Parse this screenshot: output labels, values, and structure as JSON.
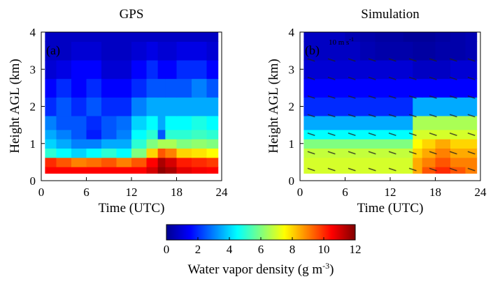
{
  "figure": {
    "colorbar": {
      "label": "Water vapor density (g m",
      "label_sup": "-3",
      "label_close": ")",
      "min": 0,
      "max": 12,
      "ticks": [
        "0",
        "2",
        "4",
        "6",
        "8",
        "10",
        "12"
      ],
      "colormap": "jet",
      "orientation": "horizontal"
    }
  },
  "chart_data": [
    {
      "type": "heatmap",
      "title": "GPS",
      "panel_label": "(a)",
      "xlabel": "Time (UTC)",
      "ylabel": "Height AGL (km)",
      "xlim": [
        0,
        24
      ],
      "ylim": [
        0,
        4
      ],
      "xticks": [
        "0",
        "6",
        "12",
        "18",
        "24"
      ],
      "yticks": [
        "0",
        "1",
        "2",
        "3",
        "4"
      ],
      "x": [
        1,
        3,
        5,
        7,
        9,
        11,
        13,
        15,
        16,
        17,
        19,
        21,
        23
      ],
      "y": [
        0.25,
        0.5,
        0.75,
        1.0,
        1.25,
        1.5,
        2.0,
        2.5,
        3.0,
        3.5,
        4.0
      ],
      "z": [
        [
          10.5,
          10.5,
          10.5,
          10.5,
          10.5,
          10.5,
          10.5,
          11.0,
          11.8,
          11.5,
          10.8,
          10.6,
          10.5
        ],
        [
          10.0,
          9.5,
          9.0,
          9.2,
          9.5,
          9.0,
          9.5,
          10.5,
          11.5,
          11.0,
          10.2,
          10.0,
          9.8
        ],
        [
          5.0,
          4.5,
          4.0,
          4.5,
          5.0,
          4.5,
          6.0,
          8.0,
          9.5,
          9.0,
          8.0,
          7.8,
          7.5
        ],
        [
          4.0,
          3.5,
          3.0,
          3.0,
          3.5,
          3.5,
          5.0,
          6.0,
          6.5,
          6.5,
          6.0,
          6.2,
          6.0
        ],
        [
          3.5,
          3.0,
          2.5,
          1.8,
          2.5,
          3.0,
          4.5,
          5.0,
          2.5,
          5.0,
          5.0,
          5.2,
          5.0
        ],
        [
          3.0,
          2.5,
          2.5,
          2.0,
          2.5,
          2.8,
          4.0,
          4.5,
          3.5,
          4.5,
          4.5,
          4.8,
          4.5
        ],
        [
          2.0,
          2.5,
          2.0,
          2.5,
          2.0,
          2.0,
          3.0,
          3.5,
          3.5,
          3.5,
          3.5,
          3.5,
          3.5
        ],
        [
          1.5,
          2.0,
          1.5,
          2.0,
          1.5,
          1.5,
          2.0,
          2.5,
          2.5,
          2.5,
          2.5,
          3.0,
          2.5
        ],
        [
          1.0,
          1.2,
          1.5,
          1.5,
          1.0,
          1.0,
          1.5,
          2.0,
          1.5,
          1.5,
          2.0,
          2.0,
          1.5
        ],
        [
          0.8,
          0.8,
          1.0,
          1.0,
          0.8,
          0.8,
          1.0,
          1.2,
          1.0,
          1.0,
          1.2,
          1.2,
          1.0
        ],
        [
          0.8,
          0.8,
          0.8,
          0.8,
          0.8,
          0.8,
          0.8,
          0.8,
          0.8,
          0.8,
          0.8,
          0.8,
          0.8
        ]
      ],
      "grid": false
    },
    {
      "type": "heatmap",
      "title": "Simulation",
      "panel_label": "(b)",
      "xlabel": "Time (UTC)",
      "ylabel": "Height AGL (km)",
      "xlim": [
        0,
        24
      ],
      "ylim": [
        0,
        4
      ],
      "xticks": [
        "0",
        "6",
        "12",
        "18",
        "24"
      ],
      "yticks": [
        "0",
        "1",
        "2",
        "3",
        "4"
      ],
      "annotation": "10 m s",
      "annotation_sup": "-1",
      "x": [
        1,
        3,
        5,
        7,
        9,
        11,
        13,
        14.5,
        15.5,
        17,
        19,
        21,
        23
      ],
      "y": [
        0.25,
        0.5,
        0.75,
        1.0,
        1.25,
        1.5,
        2.0,
        2.5,
        3.0,
        3.5,
        4.0
      ],
      "z": [
        [
          7.0,
          7.0,
          7.0,
          7.0,
          7.0,
          7.0,
          7.0,
          7.0,
          8.5,
          9.5,
          10.0,
          9.5,
          9.0
        ],
        [
          7.0,
          7.0,
          7.0,
          7.0,
          7.0,
          7.0,
          7.0,
          7.0,
          8.5,
          9.0,
          9.5,
          9.0,
          9.0
        ],
        [
          6.8,
          6.8,
          6.8,
          6.8,
          6.8,
          6.8,
          6.8,
          6.8,
          8.0,
          8.5,
          9.0,
          8.5,
          8.5
        ],
        [
          6.0,
          6.0,
          6.0,
          6.0,
          6.0,
          6.0,
          6.0,
          6.0,
          7.5,
          8.0,
          8.5,
          8.0,
          8.0
        ],
        [
          4.5,
          4.5,
          4.5,
          4.5,
          4.5,
          4.5,
          4.5,
          4.5,
          7.0,
          7.0,
          7.0,
          7.0,
          7.0
        ],
        [
          3.5,
          3.5,
          3.5,
          3.5,
          3.5,
          3.5,
          3.5,
          3.5,
          6.5,
          6.5,
          6.5,
          6.5,
          6.5
        ],
        [
          2.0,
          2.0,
          2.0,
          2.0,
          2.0,
          2.0,
          2.0,
          2.0,
          3.5,
          3.5,
          3.5,
          3.5,
          3.5
        ],
        [
          1.5,
          1.5,
          1.5,
          1.5,
          1.5,
          1.5,
          1.5,
          1.5,
          1.5,
          1.5,
          1.5,
          1.5,
          1.5
        ],
        [
          1.0,
          1.0,
          1.0,
          1.0,
          1.0,
          1.0,
          1.0,
          1.0,
          0.8,
          0.8,
          0.8,
          1.0,
          1.0
        ],
        [
          0.8,
          0.8,
          0.8,
          0.8,
          0.6,
          0.5,
          0.5,
          0.5,
          0.4,
          0.4,
          0.5,
          0.5,
          0.6
        ],
        [
          0.8,
          0.8,
          0.8,
          0.6,
          0.5,
          0.4,
          0.4,
          0.3,
          0.3,
          0.3,
          0.4,
          0.5,
          0.6
        ]
      ],
      "grid": false
    }
  ]
}
